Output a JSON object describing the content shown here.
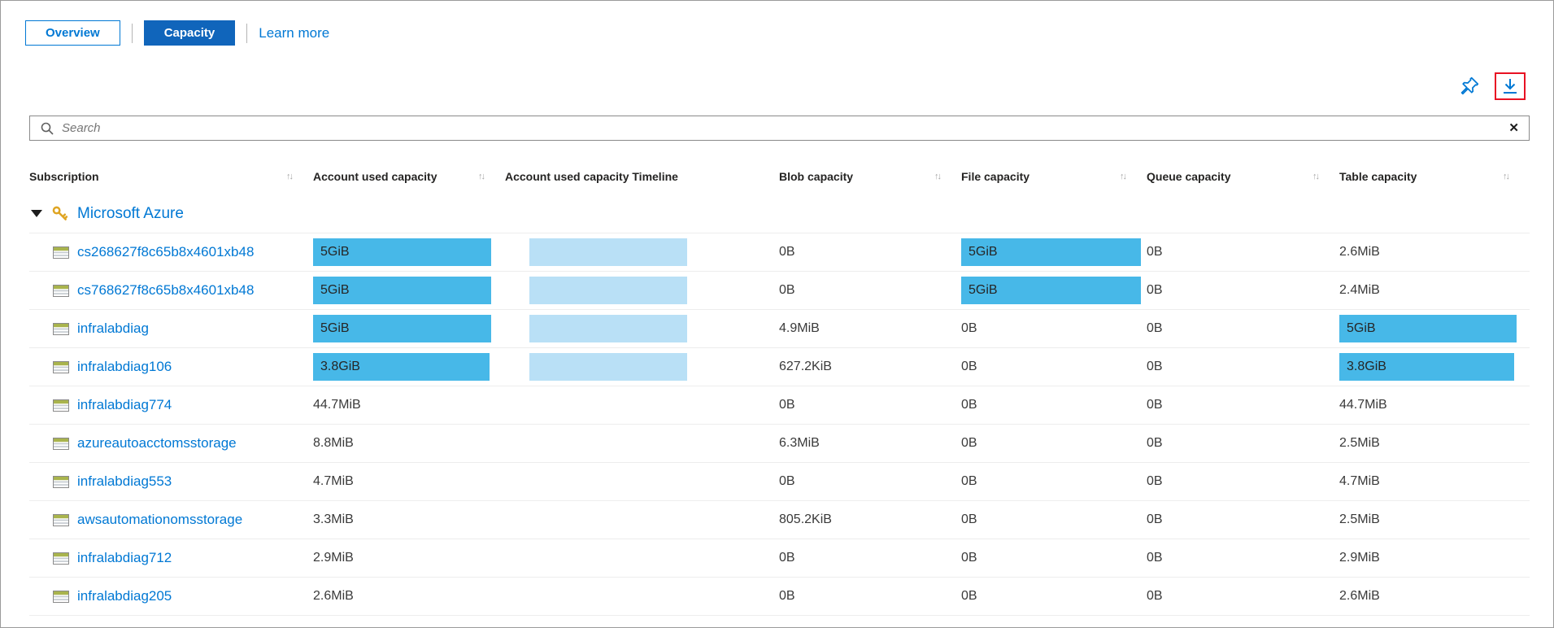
{
  "colors": {
    "accent_blue": "#0078d4",
    "capacity_button_fill": "#1065bb",
    "bar_fill": "#47b8e8",
    "timeline_fill": "#b9e0f6",
    "download_highlight": "#e81123",
    "key_gold": "#dfa523"
  },
  "tabs": {
    "overview_label": "Overview",
    "capacity_label": "Capacity",
    "learn_more_label": "Learn more"
  },
  "toolbar": {
    "pin_icon": "pin",
    "download_icon": "download"
  },
  "search": {
    "placeholder": "Search",
    "clear_icon": "✕"
  },
  "table": {
    "sort_icon": "↑↓",
    "columns": [
      {
        "label": "Subscription",
        "sortable": true
      },
      {
        "label": "Account used capacity",
        "sortable": true
      },
      {
        "label": "Account used capacity Timeline",
        "sortable": false
      },
      {
        "label": "Blob capacity",
        "sortable": true
      },
      {
        "label": "File capacity",
        "sortable": true
      },
      {
        "label": "Queue capacity",
        "sortable": true
      },
      {
        "label": "Table capacity",
        "sortable": true
      }
    ],
    "group": {
      "name": "Microsoft Azure",
      "expand_icon": "collapse-triangle",
      "key_icon": "key"
    },
    "rows": [
      {
        "name": "cs268627f8c65b8x4601xb48",
        "account_used": "5GiB",
        "account_bar": 93,
        "timeline": "bar",
        "blob": "0B",
        "file": "5GiB",
        "file_bar": 97,
        "queue": "0B",
        "table": "2.6MiB",
        "table_bar": null
      },
      {
        "name": "cs768627f8c65b8x4601xb48",
        "account_used": "5GiB",
        "account_bar": 93,
        "timeline": "bar",
        "blob": "0B",
        "file": "5GiB",
        "file_bar": 97,
        "queue": "0B",
        "table": "2.4MiB",
        "table_bar": null
      },
      {
        "name": "infralabdiag",
        "account_used": "5GiB",
        "account_bar": 93,
        "timeline": "bar",
        "blob": "4.9MiB",
        "file": "0B",
        "file_bar": null,
        "queue": "0B",
        "table": "5GiB",
        "table_bar": 93
      },
      {
        "name": "infralabdiag106",
        "account_used": "3.8GiB",
        "account_bar": 92,
        "timeline": "bar",
        "blob": "627.2KiB",
        "file": "0B",
        "file_bar": null,
        "queue": "0B",
        "table": "3.8GiB",
        "table_bar": 92
      },
      {
        "name": "infralabdiag774",
        "account_used": "44.7MiB",
        "account_bar": null,
        "timeline": "line",
        "blob": "0B",
        "file": "0B",
        "file_bar": null,
        "queue": "0B",
        "table": "44.7MiB",
        "table_bar": null
      },
      {
        "name": "azureautoacctomsstorage",
        "account_used": "8.8MiB",
        "account_bar": null,
        "timeline": "line",
        "blob": "6.3MiB",
        "file": "0B",
        "file_bar": null,
        "queue": "0B",
        "table": "2.5MiB",
        "table_bar": null
      },
      {
        "name": "infralabdiag553",
        "account_used": "4.7MiB",
        "account_bar": null,
        "timeline": "line",
        "blob": "0B",
        "file": "0B",
        "file_bar": null,
        "queue": "0B",
        "table": "4.7MiB",
        "table_bar": null
      },
      {
        "name": "awsautomationomsstorage",
        "account_used": "3.3MiB",
        "account_bar": null,
        "timeline": "line",
        "blob": "805.2KiB",
        "file": "0B",
        "file_bar": null,
        "queue": "0B",
        "table": "2.5MiB",
        "table_bar": null
      },
      {
        "name": "infralabdiag712",
        "account_used": "2.9MiB",
        "account_bar": null,
        "timeline": "line",
        "blob": "0B",
        "file": "0B",
        "file_bar": null,
        "queue": "0B",
        "table": "2.9MiB",
        "table_bar": null
      },
      {
        "name": "infralabdiag205",
        "account_used": "2.6MiB",
        "account_bar": null,
        "timeline": "line",
        "blob": "0B",
        "file": "0B",
        "file_bar": null,
        "queue": "0B",
        "table": "2.6MiB",
        "table_bar": null
      }
    ]
  }
}
